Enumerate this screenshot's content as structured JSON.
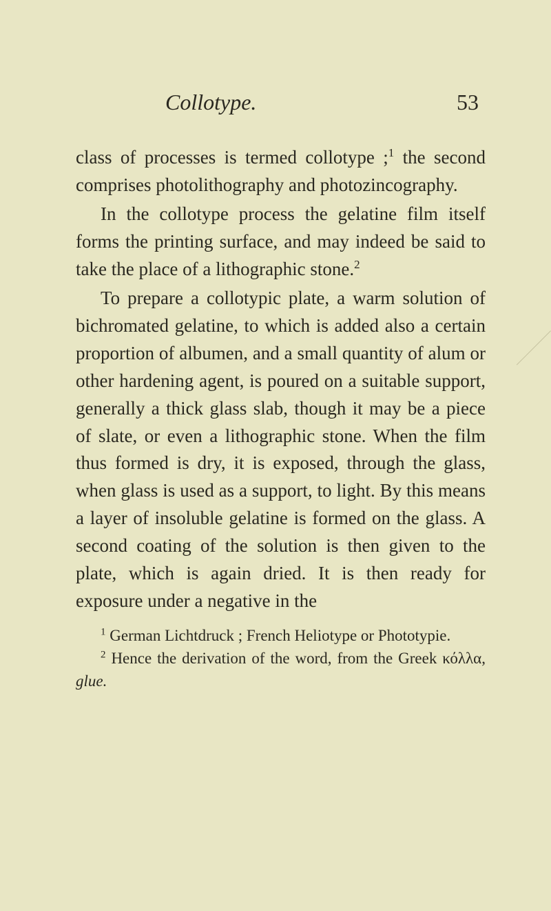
{
  "header": {
    "running_title": "Collotype.",
    "page_number": "53"
  },
  "paragraphs": {
    "p1": "class of processes is termed collotype ;¹ the second comprises photolithography and photozincography.",
    "p2": "In the collotype process the gelatine film itself forms the printing surface, and may indeed be said to take the place of a litho­graphic stone.²",
    "p3": "To prepare a collotypic plate, a warm solution of bichromated gelatine, to which is added also a certain proportion of albu­men, and a small quantity of alum or other hardening agent, is poured on a suitable support, generally a thick glass slab, though it may be a piece of slate, or even a litho­graphic stone. When the film thus formed is dry, it is exposed, through the glass, when glass is used as a support, to light. By this means a layer of insoluble gelatine is formed on the glass. A second coating of the solution is then given to the plate, which is again dried. It is then ready for exposure under a negative in the"
  },
  "footnotes": {
    "fn1_marker": "1",
    "fn1_text": " German Lichtdruck ; French Heliotype or Photo­typie.",
    "fn2_marker": "2",
    "fn2_text_a": " Hence the derivation of the word, from the Greek ",
    "fn2_greek": "κόλλα,",
    "fn2_text_b": " ",
    "fn2_italic": "glue."
  },
  "colors": {
    "background": "#e8e6c4",
    "text": "#2a2820"
  },
  "typography": {
    "body_fontsize": 27,
    "header_fontsize": 32,
    "footnote_fontsize": 23,
    "line_height": 1.48
  }
}
